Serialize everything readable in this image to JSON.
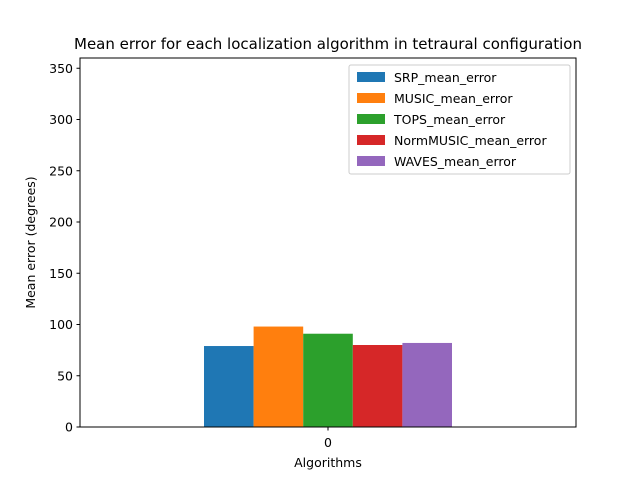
{
  "chart_data": {
    "type": "bar",
    "title": "Mean error for each localization algorithm in tetraural configuration",
    "xlabel": "Algorithms",
    "ylabel": "Mean error (degrees)",
    "categories": [
      "0"
    ],
    "ylim": [
      0,
      360
    ],
    "yticks": [
      0,
      50,
      100,
      150,
      200,
      250,
      300,
      350
    ],
    "grid": false,
    "legend_position": "top-right",
    "series": [
      {
        "name": "SRP_mean_error",
        "values": [
          79
        ],
        "color": "#1f77b4"
      },
      {
        "name": "MUSIC_mean_error",
        "values": [
          98
        ],
        "color": "#ff7f0e"
      },
      {
        "name": "TOPS_mean_error",
        "values": [
          91
        ],
        "color": "#2ca02c"
      },
      {
        "name": "NormMUSIC_mean_error",
        "values": [
          80
        ],
        "color": "#d62728"
      },
      {
        "name": "WAVES_mean_error",
        "values": [
          82
        ],
        "color": "#9467bd"
      }
    ]
  }
}
